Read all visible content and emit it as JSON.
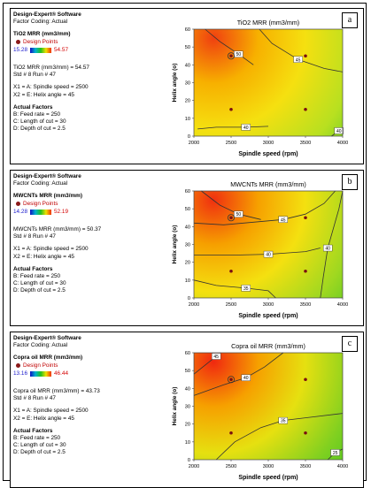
{
  "panels": [
    {
      "tag": "a",
      "software": "Design-Expert® Software",
      "coding": "Factor Coding: Actual",
      "response": "TiO2 MRR (mm3/mm)",
      "design_points_label": "Design Points",
      "scale_min": "15.28",
      "scale_max": "54.57",
      "prediction": "TiO2 MRR (mm3/mm) = 54.57",
      "std_run": "Std # 8 Run # 47",
      "x1": "X1 = A: Spindle speed = 2500",
      "x2": "X2 = E: Helix angle = 45",
      "actual_factors_title": "Actual Factors",
      "factors": [
        "B: Feed rate = 250",
        "C: Length of cut = 30",
        "D: Depth of cut = 2.5"
      ]
    },
    {
      "tag": "b",
      "software": "Design-Expert® Software",
      "coding": "Factor Coding: Actual",
      "response": "MWCNTs MRR (mm3/mm)",
      "design_points_label": "Design Points",
      "scale_min": "14.28",
      "scale_max": "52.19",
      "prediction": "MWCNTs MRR (mm3/mm) = 50.37",
      "std_run": "Std # 8 Run # 47",
      "x1": "X1 = A: Spindle speed = 2500",
      "x2": "X2 = E: Helix angle = 45",
      "actual_factors_title": "Actual Factors",
      "factors": [
        "B: Feed rate = 250",
        "C: Length of cut = 30",
        "D: Depth of cut = 2.5"
      ]
    },
    {
      "tag": "c",
      "software": "Design-Expert® Software",
      "coding": "Factor Coding: Actual",
      "response": "Copra oil MRR (mm3/mm)",
      "design_points_label": "Design Points",
      "scale_min": "13.16",
      "scale_max": "46.44",
      "prediction": "Copra oil MRR (mm3/mm) = 43.73",
      "std_run": "Std # 8 Run # 47",
      "x1": "X1 = A: Spindle speed = 2500",
      "x2": "X2 = E: Helix angle = 45",
      "actual_factors_title": "Actual Factors",
      "factors": [
        "B: Feed rate = 250",
        "C: Length of cut = 30",
        "D: Depth of cut = 2.5"
      ]
    }
  ],
  "chart_data": [
    {
      "type": "contour",
      "title": "TiO2 MRR (mm3/mm)",
      "xlabel": "Spindle speed (rpm)",
      "ylabel": "Helix angle (o)",
      "x_ticks": [
        "2000",
        "2500",
        "3000",
        "3500",
        "4000"
      ],
      "y_ticks": [
        "0",
        "10",
        "20",
        "30",
        "40",
        "50",
        "60"
      ],
      "xlim": [
        2000,
        4000
      ],
      "ylim": [
        0,
        60
      ],
      "gradient": [
        "#f04010",
        "#f7b000",
        "#f5e010",
        "#b8e020",
        "#2ec02e"
      ],
      "contours": [
        {
          "level": "50",
          "points": [
            [
              2150,
              60
            ],
            [
              2350,
              53
            ],
            [
              2600,
              46
            ],
            [
              2800,
              40
            ]
          ]
        },
        {
          "level": "45",
          "points": [
            [
              2880,
              60
            ],
            [
              3050,
              52
            ],
            [
              3400,
              43
            ],
            [
              3750,
              38
            ],
            [
              4000,
              36
            ]
          ]
        },
        {
          "level": "40",
          "points": [
            [
              2050,
              4
            ],
            [
              2300,
              5
            ],
            [
              2700,
              5
            ],
            [
              3000,
              5.5
            ]
          ]
        },
        {
          "level": "40",
          "points": [
            [
              3850,
              0
            ],
            [
              3950,
              3
            ],
            [
              4000,
              5
            ]
          ]
        }
      ],
      "design_points": [
        [
          2500,
          45
        ],
        [
          2500,
          15
        ],
        [
          3500,
          45
        ],
        [
          3500,
          15
        ]
      ],
      "highlight": [
        2500,
        45
      ]
    },
    {
      "type": "contour",
      "title": "MWCNTs MRR (mm3/mm)",
      "xlabel": "Spindle speed (rpm)",
      "ylabel": "Helix angle (o)",
      "x_ticks": [
        "2000",
        "2500",
        "3000",
        "3500",
        "4000"
      ],
      "y_ticks": [
        "0",
        "10",
        "20",
        "30",
        "40",
        "50",
        "60"
      ],
      "xlim": [
        2000,
        4000
      ],
      "ylim": [
        0,
        60
      ],
      "gradient": [
        "#f03010",
        "#f6a000",
        "#f4e010",
        "#a0d820",
        "#28c028"
      ],
      "contours": [
        {
          "level": "50",
          "points": [
            [
              2100,
              60
            ],
            [
              2350,
              52
            ],
            [
              2600,
              47
            ],
            [
              2900,
              44
            ]
          ]
        },
        {
          "level": "45",
          "points": [
            [
              2000,
              42
            ],
            [
              2400,
              41
            ],
            [
              2800,
              42.5
            ],
            [
              3200,
              44
            ],
            [
              3500,
              47
            ],
            [
              3750,
              53
            ],
            [
              3900,
              60
            ]
          ]
        },
        {
          "level": "40",
          "points": [
            [
              2000,
              24
            ],
            [
              2500,
              24
            ],
            [
              3000,
              24.5
            ],
            [
              3500,
              26
            ],
            [
              3700,
              28
            ]
          ]
        },
        {
          "level": "40",
          "points": [
            [
              3700,
              0
            ],
            [
              3740,
              12
            ],
            [
              3800,
              28
            ],
            [
              3950,
              50
            ],
            [
              4000,
              60
            ]
          ]
        },
        {
          "level": "35",
          "points": [
            [
              2000,
              10
            ],
            [
              2300,
              7
            ],
            [
              2700,
              5.5
            ],
            [
              3000,
              4
            ],
            [
              3100,
              0
            ]
          ]
        }
      ],
      "design_points": [
        [
          2500,
          45
        ],
        [
          2500,
          15
        ],
        [
          3500,
          45
        ],
        [
          3500,
          15
        ]
      ],
      "highlight": [
        2500,
        45
      ]
    },
    {
      "type": "contour",
      "title": "Copra oil MRR (mm3/mm)",
      "xlabel": "Spindle speed (rpm)",
      "ylabel": "Helix angle (o)",
      "x_ticks": [
        "2000",
        "2500",
        "3000",
        "3500",
        "4000"
      ],
      "y_ticks": [
        "0",
        "10",
        "20",
        "30",
        "40",
        "50",
        "60"
      ],
      "xlim": [
        2000,
        4000
      ],
      "ylim": [
        0,
        60
      ],
      "gradient": [
        "#f02810",
        "#f6a000",
        "#e6e010",
        "#80d020",
        "#20c020"
      ],
      "contours": [
        {
          "level": "45",
          "points": [
            [
              2000,
              48
            ],
            [
              2150,
              53
            ],
            [
              2300,
              58
            ],
            [
              2350,
              60
            ]
          ]
        },
        {
          "level": "40",
          "points": [
            [
              2000,
              36
            ],
            [
              2400,
              42
            ],
            [
              2700,
              46
            ],
            [
              2950,
              52
            ],
            [
              3200,
              60
            ]
          ]
        },
        {
          "level": "35",
          "points": [
            [
              2300,
              0
            ],
            [
              2550,
              10
            ],
            [
              2900,
              18
            ],
            [
              3200,
              22
            ],
            [
              3600,
              24
            ],
            [
              4000,
              26
            ]
          ]
        },
        {
          "level": "25",
          "points": [
            [
              3800,
              0
            ],
            [
              3900,
              4
            ],
            [
              4000,
              6
            ]
          ]
        }
      ],
      "design_points": [
        [
          2500,
          45
        ],
        [
          2500,
          15
        ],
        [
          3500,
          45
        ],
        [
          3500,
          15
        ]
      ],
      "highlight": [
        2500,
        45
      ]
    }
  ]
}
